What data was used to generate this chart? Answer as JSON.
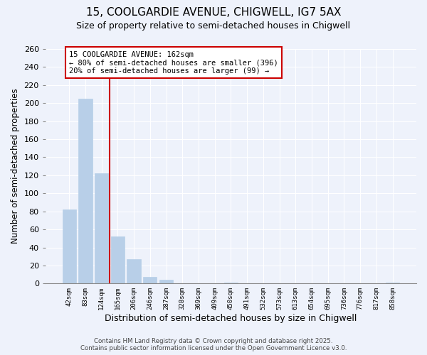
{
  "title_line1": "15, COOLGARDIE AVENUE, CHIGWELL, IG7 5AX",
  "title_line2": "Size of property relative to semi-detached houses in Chigwell",
  "xlabel": "Distribution of semi-detached houses by size in Chigwell",
  "ylabel": "Number of semi-detached properties",
  "bin_labels": [
    "42sqm",
    "83sqm",
    "124sqm",
    "165sqm",
    "206sqm",
    "246sqm",
    "287sqm",
    "328sqm",
    "369sqm",
    "409sqm",
    "450sqm",
    "491sqm",
    "532sqm",
    "573sqm",
    "613sqm",
    "654sqm",
    "695sqm",
    "736sqm",
    "776sqm",
    "817sqm",
    "858sqm"
  ],
  "bar_values": [
    82,
    205,
    122,
    52,
    27,
    7,
    4,
    0,
    0,
    0,
    1,
    0,
    0,
    0,
    0,
    0,
    0,
    0,
    0,
    0,
    1
  ],
  "bar_color": "#b8cfe8",
  "bar_edge_color": "#b8cfe8",
  "vline_color": "#cc0000",
  "annotation_title": "15 COOLGARDIE AVENUE: 162sqm",
  "annotation_line1": "← 80% of semi-detached houses are smaller (396)",
  "annotation_line2": "20% of semi-detached houses are larger (99) →",
  "annotation_box_color": "#cc0000",
  "ylim": [
    0,
    260
  ],
  "yticks": [
    0,
    20,
    40,
    60,
    80,
    100,
    120,
    140,
    160,
    180,
    200,
    220,
    240,
    260
  ],
  "footer_line1": "Contains HM Land Registry data © Crown copyright and database right 2025.",
  "footer_line2": "Contains public sector information licensed under the Open Government Licence v3.0.",
  "bg_color": "#eef2fb",
  "grid_color": "#ffffff"
}
